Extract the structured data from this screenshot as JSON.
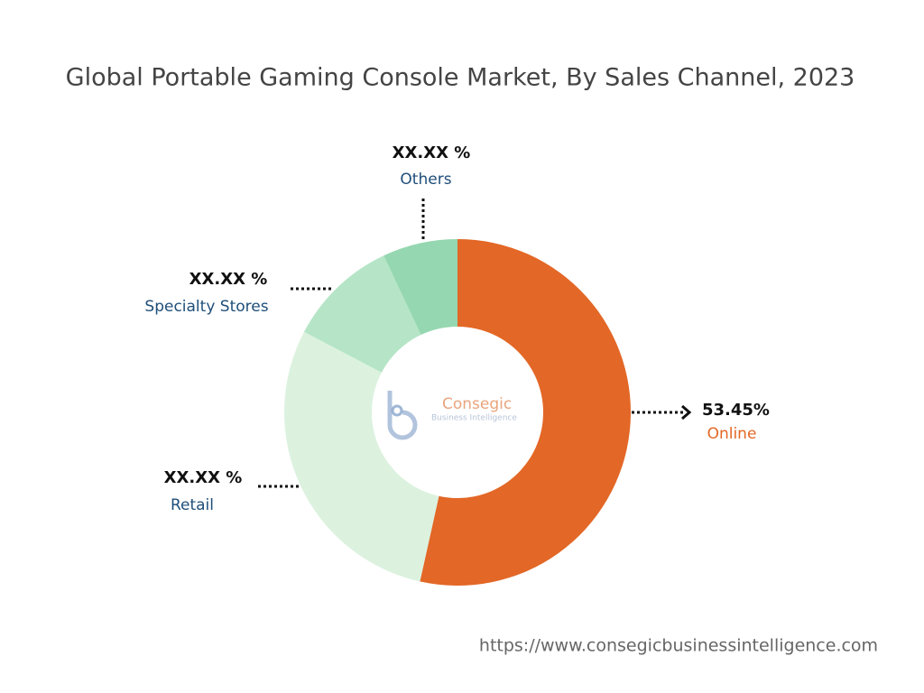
{
  "chart_data": {
    "type": "donut",
    "title": "Global Portable Gaming Console Market, By Sales Channel, 2023",
    "categories": [
      "Online",
      "Retail",
      "Specialty Stores",
      "Others"
    ],
    "values": [
      53.45,
      29.2,
      10.3,
      7.0
    ],
    "value_labels": [
      "53.45%",
      "XX.XX %",
      "XX.XX %",
      "XX.XX %"
    ],
    "colors": [
      "#e36726",
      "#dcf2df",
      "#b5e5c6",
      "#95d7b0"
    ]
  },
  "logo": {
    "name": "Consegic",
    "tagline": "Business Intelligence"
  },
  "footer_url": "https://www.consegicbusinessintelligence.com"
}
